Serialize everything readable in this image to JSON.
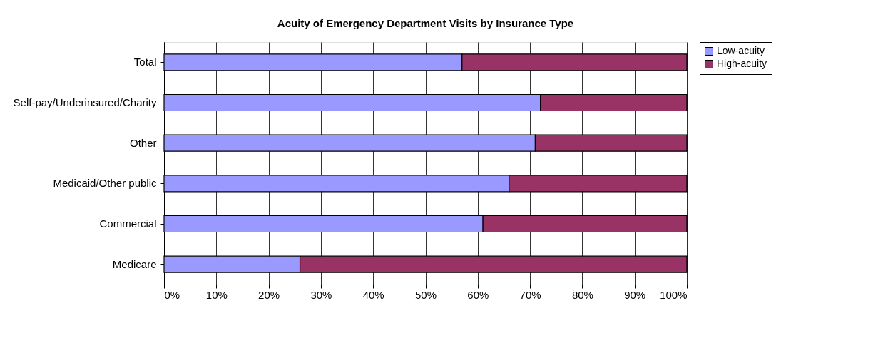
{
  "chart_data": {
    "type": "bar",
    "orientation": "horizontal",
    "stacked": true,
    "title": "Acuity of Emergency Department Visits by Insurance Type",
    "categories": [
      "Total",
      "Self-pay/Underinsured/Charity",
      "Other",
      "Medicaid/Other public",
      "Commercial",
      "Medicare"
    ],
    "series": [
      {
        "name": "Low-acuity",
        "color": "#9999ff",
        "values": [
          57,
          72,
          71,
          66,
          61,
          26
        ]
      },
      {
        "name": "High-acuity",
        "color": "#993366",
        "values": [
          43,
          28,
          29,
          34,
          39,
          74
        ]
      }
    ],
    "xlim": [
      0,
      100
    ],
    "xticks": [
      {
        "value": 0,
        "label": "0%"
      },
      {
        "value": 10,
        "label": "10%"
      },
      {
        "value": 20,
        "label": "20%"
      },
      {
        "value": 30,
        "label": "30%"
      },
      {
        "value": 40,
        "label": "40%"
      },
      {
        "value": 50,
        "label": "50%"
      },
      {
        "value": 60,
        "label": "60%"
      },
      {
        "value": 70,
        "label": "70%"
      },
      {
        "value": 80,
        "label": "80%"
      },
      {
        "value": 90,
        "label": "90%"
      },
      {
        "value": 100,
        "label": "100%"
      }
    ],
    "grid": "x",
    "legend": "right"
  }
}
